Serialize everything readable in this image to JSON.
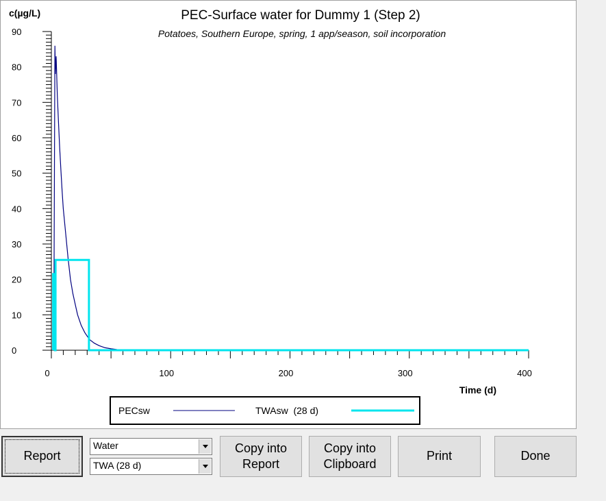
{
  "chart_data": {
    "type": "line",
    "title": "PEC-Surface water for Dummy 1 (Step 2)",
    "subtitle": "Potatoes, Southern Europe, spring, 1 app/season, soil incorporation",
    "ylabel": "c(µg/L)",
    "xlabel": "Time (d)",
    "xlim": [
      0,
      400
    ],
    "ylim": [
      0,
      90
    ],
    "xticks": [
      0,
      100,
      200,
      300,
      400
    ],
    "yticks": [
      0,
      10,
      20,
      30,
      40,
      50,
      60,
      70,
      80,
      90
    ],
    "grid": false,
    "legend_position": "bottom",
    "series": [
      {
        "name": "PECsw",
        "color": "#000080",
        "x": [
          2,
          3,
          3.4,
          4,
          5,
          6,
          7,
          8,
          9,
          10,
          12,
          14,
          16,
          18,
          20,
          22,
          25,
          28,
          32,
          36,
          40,
          45,
          50,
          55,
          60,
          62,
          63,
          70,
          100,
          200,
          300,
          400
        ],
        "y": [
          0,
          86,
          78,
          83,
          72,
          64,
          57,
          51,
          45,
          40,
          33,
          26,
          20,
          16,
          13,
          10,
          7,
          5,
          3,
          2,
          1.3,
          0.7,
          0.4,
          0.2,
          0.1,
          0.1,
          0,
          0,
          0,
          0,
          0,
          0
        ]
      },
      {
        "name": "TWAsw  (28 d)",
        "color": "#00e5ee",
        "x": [
          1.5,
          1.5,
          3,
          3,
          3.5,
          3.5,
          31.5,
          31.5,
          400
        ],
        "y": [
          0,
          21.5,
          21.5,
          0,
          0,
          25.5,
          25.5,
          0,
          0
        ]
      }
    ]
  },
  "controls": {
    "report_label": "Report",
    "compartment_select": "Water",
    "type_select": "TWA (28 d)",
    "copy_report_label": "Copy into\nReport",
    "copy_clipboard_label": "Copy into\nClipboard",
    "print_label": "Print",
    "done_label": "Done"
  }
}
